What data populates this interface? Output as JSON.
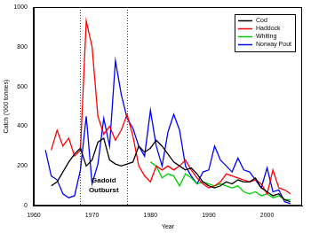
{
  "chart_data": {
    "type": "line",
    "x_label": "Year",
    "y_label": "Catch ('000 tonnes)",
    "x": [
      1962,
      1963,
      1964,
      1965,
      1966,
      1967,
      1968,
      1969,
      1970,
      1971,
      1972,
      1973,
      1974,
      1975,
      1976,
      1977,
      1978,
      1979,
      1980,
      1981,
      1982,
      1983,
      1984,
      1985,
      1986,
      1987,
      1988,
      1989,
      1990,
      1991,
      1992,
      1993,
      1994,
      1995,
      1996,
      1997,
      1998,
      1999,
      2000,
      2001,
      2002,
      2003,
      2004
    ],
    "series": [
      {
        "name": "Cod",
        "color": "#000000",
        "values": [
          null,
          100,
          120,
          170,
          220,
          260,
          290,
          200,
          230,
          320,
          340,
          230,
          210,
          200,
          210,
          220,
          300,
          270,
          290,
          330,
          300,
          260,
          220,
          200,
          180,
          190,
          160,
          120,
          100,
          90,
          100,
          120,
          110,
          130,
          120,
          120,
          140,
          90,
          70,
          50,
          60,
          30,
          20
        ]
      },
      {
        "name": "Haddock",
        "color": "#ff0000",
        "values": [
          null,
          280,
          380,
          300,
          340,
          250,
          280,
          930,
          800,
          450,
          360,
          400,
          330,
          380,
          460,
          350,
          200,
          150,
          120,
          200,
          180,
          200,
          180,
          200,
          230,
          180,
          140,
          110,
          90,
          100,
          120,
          160,
          150,
          140,
          130,
          120,
          130,
          110,
          60,
          180,
          90,
          80,
          60
        ]
      },
      {
        "name": "Whiting",
        "color": "#00cc00",
        "values": [
          null,
          null,
          null,
          null,
          null,
          null,
          null,
          null,
          null,
          null,
          null,
          null,
          null,
          null,
          null,
          null,
          null,
          null,
          220,
          200,
          140,
          160,
          150,
          100,
          160,
          140,
          110,
          120,
          110,
          100,
          110,
          100,
          90,
          100,
          70,
          60,
          70,
          50,
          60,
          40,
          50,
          30,
          30
        ]
      },
      {
        "name": "Norway Pout",
        "color": "#0000ff",
        "values": [
          280,
          150,
          130,
          60,
          40,
          50,
          180,
          450,
          110,
          210,
          440,
          300,
          730,
          560,
          440,
          390,
          300,
          250,
          480,
          300,
          200,
          370,
          460,
          380,
          200,
          150,
          110,
          170,
          180,
          300,
          230,
          200,
          170,
          240,
          180,
          170,
          130,
          90,
          190,
          70,
          80,
          20,
          10
        ]
      }
    ],
    "xlim": [
      1960,
      2006
    ],
    "xticks": [
      1960,
      1970,
      1980,
      1990,
      2000
    ],
    "ylim": [
      0,
      1000
    ],
    "yticks": [
      0,
      200,
      400,
      600,
      800,
      1000
    ],
    "grid": false,
    "legend": "top-right",
    "annotation": {
      "lines": [
        "Gadoid",
        "Outburst"
      ],
      "x_start": 1968,
      "x_end": 1976
    }
  }
}
